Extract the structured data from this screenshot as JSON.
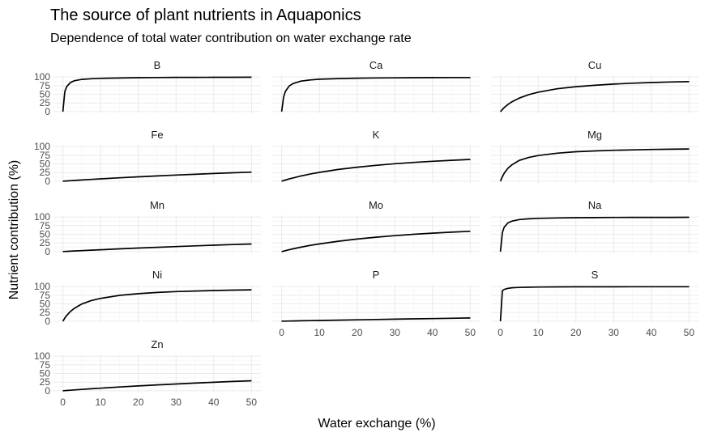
{
  "chart_data": {
    "type": "line",
    "title": "The source of plant nutrients in Aquaponics",
    "subtitle": "Dependence of total water contribution on water exchange rate",
    "xlabel": "Water exchange (%)",
    "ylabel": "Nutrient contribution (%)",
    "xlim": [
      0,
      50
    ],
    "ylim": [
      0,
      100
    ],
    "x_ticks": [
      "0",
      "10",
      "20",
      "30",
      "40",
      "50"
    ],
    "y_ticks": [
      "0",
      "25",
      "50",
      "75",
      "100"
    ],
    "grid": true,
    "x": [
      0,
      0.5,
      1,
      2,
      3,
      5,
      7.5,
      10,
      15,
      20,
      25,
      30,
      35,
      40,
      45,
      50
    ],
    "panels": [
      {
        "name": "B",
        "values": [
          0,
          58,
          72,
          84,
          89,
          93,
          95,
          96,
          97,
          98,
          98.5,
          98.8,
          99,
          99.1,
          99.2,
          99.3
        ]
      },
      {
        "name": "Ca",
        "values": [
          0,
          42,
          59,
          74,
          81,
          88,
          91.5,
          93.5,
          95.5,
          96.6,
          97.2,
          97.6,
          98,
          98.2,
          98.4,
          98.5
        ]
      },
      {
        "name": "Cu",
        "values": [
          0,
          6,
          11.5,
          20.5,
          28,
          39,
          49,
          56,
          66,
          72,
          76,
          79.5,
          82,
          84,
          85.5,
          86.5
        ]
      },
      {
        "name": "Fe",
        "values": [
          0,
          0.3,
          0.7,
          1.4,
          2.1,
          3.5,
          5.1,
          6.7,
          9.7,
          12.5,
          15.1,
          17.6,
          19.9,
          22.1,
          24.2,
          26.1
        ]
      },
      {
        "name": "K",
        "values": [
          0,
          1.7,
          3.3,
          6.4,
          9.3,
          14.6,
          20.4,
          25.4,
          33.8,
          40.5,
          45.9,
          50.4,
          54.2,
          57.5,
          60.3,
          62.8
        ]
      },
      {
        "name": "Mg",
        "values": [
          0,
          13,
          23,
          37.5,
          47,
          60,
          68.5,
          74,
          81,
          85,
          87.5,
          89.3,
          90.6,
          91.6,
          92.4,
          93
        ]
      },
      {
        "name": "Mn",
        "values": [
          0,
          0.3,
          0.6,
          1.1,
          1.7,
          2.8,
          4.1,
          5.4,
          7.9,
          10.2,
          12.4,
          14.5,
          16.6,
          18.5,
          20.3,
          22
        ]
      },
      {
        "name": "Mo",
        "values": [
          0,
          1.4,
          2.8,
          5.4,
          7.9,
          12.5,
          17.6,
          22.2,
          29.9,
          36.3,
          41.6,
          46.1,
          49.9,
          53.3,
          56.2,
          58.7
        ]
      },
      {
        "name": "Na",
        "values": [
          0,
          55,
          71,
          83,
          88,
          92.5,
          94.8,
          96,
          97.3,
          97.9,
          98.3,
          98.6,
          98.8,
          98.9,
          99,
          99.1
        ]
      },
      {
        "name": "Ni",
        "values": [
          0,
          9,
          16.5,
          28,
          37,
          49.5,
          59.5,
          66,
          74.5,
          79.5,
          83,
          85.5,
          87.3,
          88.7,
          89.8,
          90.7
        ]
      },
      {
        "name": "P",
        "values": [
          0,
          0.1,
          0.2,
          0.4,
          0.6,
          1,
          1.5,
          2,
          3,
          3.9,
          4.8,
          5.7,
          6.6,
          7.5,
          8.3,
          9.2
        ]
      },
      {
        "name": "S",
        "values": [
          0,
          88,
          92,
          95,
          96.5,
          97.6,
          98.3,
          98.7,
          99.1,
          99.3,
          99.4,
          99.5,
          99.6,
          99.6,
          99.7,
          99.7
        ]
      },
      {
        "name": "Zn",
        "values": [
          0,
          0.4,
          0.8,
          1.6,
          2.4,
          3.9,
          5.8,
          7.5,
          10.9,
          14,
          16.9,
          19.6,
          22.2,
          24.6,
          26.9,
          29
        ]
      }
    ]
  }
}
